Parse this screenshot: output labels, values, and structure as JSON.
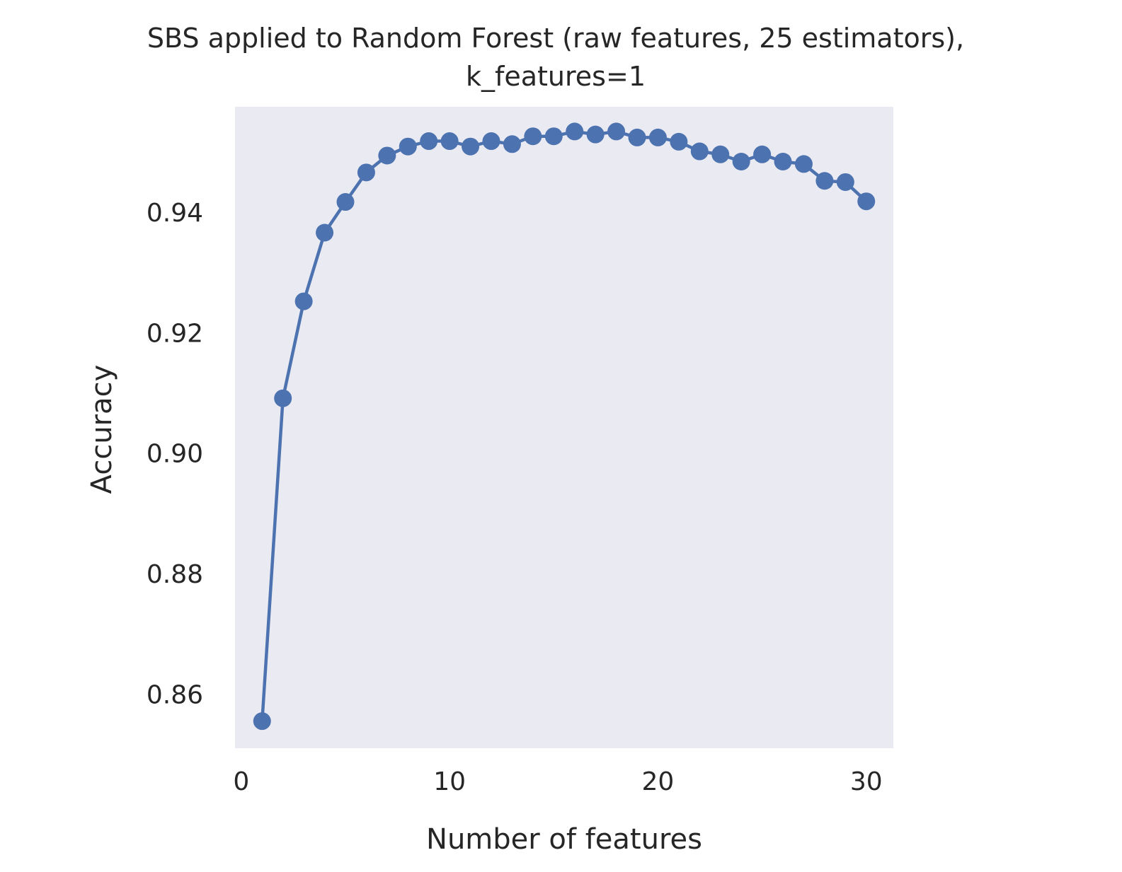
{
  "chart_data": {
    "type": "line",
    "title_line1": "SBS applied to Random Forest (raw features, 25 estimators),",
    "title_line2": "k_features=1",
    "xlabel": "Number of features",
    "ylabel": "Accuracy",
    "xlim": [
      -0.3,
      31.3
    ],
    "ylim": [
      0.851,
      0.9575
    ],
    "xticks": [
      0,
      10,
      20,
      30
    ],
    "xtick_labels": [
      "0",
      "10",
      "20",
      "30"
    ],
    "yticks": [
      0.86,
      0.88,
      0.9,
      0.92,
      0.94
    ],
    "ytick_labels": [
      "0.86",
      "0.88",
      "0.90",
      "0.92",
      "0.94"
    ],
    "grid": false,
    "background": "#eaeaf2",
    "series_color": "#4c72b0",
    "marker": "circle",
    "x": [
      1,
      2,
      3,
      4,
      5,
      6,
      7,
      8,
      9,
      10,
      11,
      12,
      13,
      14,
      15,
      16,
      17,
      18,
      19,
      20,
      21,
      22,
      23,
      24,
      25,
      26,
      27,
      28,
      29,
      30
    ],
    "y": [
      0.8555,
      0.9091,
      0.9252,
      0.9366,
      0.9417,
      0.9466,
      0.9494,
      0.9509,
      0.9518,
      0.9518,
      0.9509,
      0.9518,
      0.9513,
      0.9526,
      0.9526,
      0.9534,
      0.9529,
      0.9534,
      0.9524,
      0.9524,
      0.9517,
      0.9501,
      0.9496,
      0.9484,
      0.9496,
      0.9484,
      0.948,
      0.9452,
      0.945,
      0.9418
    ]
  }
}
